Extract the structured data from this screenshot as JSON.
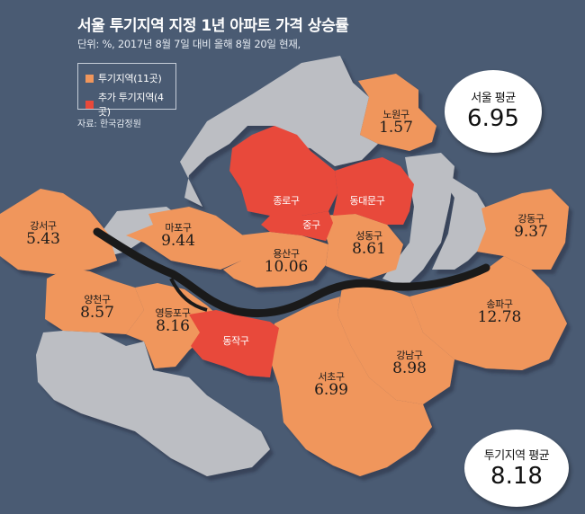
{
  "header": {
    "title": "서울 투기지역 지정 1년 아파트 가격 상승률",
    "subtitle": "단위: %, 2017년 8월 7일 대비 올해 8월 20일 현재,"
  },
  "legend": {
    "items": [
      {
        "label": "투기지역(11곳)",
        "color": "#f0965c"
      },
      {
        "label": "추가 투기지역(4곳)",
        "color": "#e8493a"
      }
    ]
  },
  "source": "자료: 한국감정원",
  "colors": {
    "speculative": "#f0965c",
    "added": "#e8493a",
    "other": "#bcbec3",
    "river": "#1a1a1a",
    "background": "#4a5b73"
  },
  "districts": {
    "nowon": {
      "name": "노원구",
      "value": "1.57",
      "category": "speculative"
    },
    "gangseo": {
      "name": "강서구",
      "value": "5.43",
      "category": "speculative"
    },
    "mapo": {
      "name": "마포구",
      "value": "9.44",
      "category": "speculative"
    },
    "yongsan": {
      "name": "용산구",
      "value": "10.06",
      "category": "speculative"
    },
    "seongdong": {
      "name": "성동구",
      "value": "8.61",
      "category": "speculative"
    },
    "gangdong": {
      "name": "강동구",
      "value": "9.37",
      "category": "speculative"
    },
    "yangcheon": {
      "name": "양천구",
      "value": "8.57",
      "category": "speculative"
    },
    "yeongdeungpo": {
      "name": "영등포구",
      "value": "8.16",
      "category": "speculative"
    },
    "songpa": {
      "name": "송파구",
      "value": "12.78",
      "category": "speculative"
    },
    "gangnam": {
      "name": "강남구",
      "value": "8.98",
      "category": "speculative"
    },
    "seocho": {
      "name": "서초구",
      "value": "6.99",
      "category": "speculative"
    },
    "jongno": {
      "name": "종로구",
      "category": "added"
    },
    "dongdaemun": {
      "name": "동대문구",
      "category": "added"
    },
    "junggu": {
      "name": "중구",
      "category": "added"
    },
    "dongjak": {
      "name": "동작구",
      "category": "added"
    }
  },
  "callouts": {
    "seoul_avg": {
      "label": "서울 평균",
      "value": "6.95"
    },
    "spec_avg": {
      "label": "투기지역 평균",
      "value": "8.18"
    }
  }
}
